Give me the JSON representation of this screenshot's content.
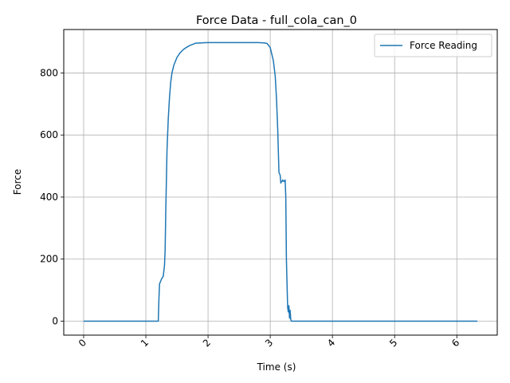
{
  "chart_data": {
    "type": "line",
    "title": "Force Data - full_cola_can_0",
    "xlabel": "Time (s)",
    "ylabel": "Force",
    "xlim": [
      -0.32,
      6.65
    ],
    "ylim": [
      -45,
      940
    ],
    "xticks": [
      0,
      1,
      2,
      3,
      4,
      5,
      6
    ],
    "yticks": [
      0,
      200,
      400,
      600,
      800
    ],
    "xtick_rotation": 45,
    "grid": true,
    "legend": {
      "position": "top-right"
    },
    "colors": {
      "line": "#1f77b4",
      "grid": "#b0b0b0"
    },
    "series": [
      {
        "name": "Force Reading",
        "x": [
          0,
          0.5,
          1.0,
          1.2,
          1.21,
          1.22,
          1.23,
          1.25,
          1.28,
          1.3,
          1.31,
          1.32,
          1.34,
          1.36,
          1.38,
          1.4,
          1.42,
          1.45,
          1.5,
          1.55,
          1.6,
          1.65,
          1.7,
          1.75,
          1.8,
          1.9,
          2.0,
          2.2,
          2.4,
          2.6,
          2.8,
          2.9,
          2.95,
          3.0,
          3.02,
          3.05,
          3.08,
          3.1,
          3.12,
          3.14,
          3.16,
          3.17,
          3.18,
          3.19,
          3.2,
          3.22,
          3.24,
          3.25,
          3.26,
          3.27,
          3.28,
          3.29,
          3.3,
          3.31,
          3.32,
          3.33,
          3.34,
          3.35,
          3.4,
          4.0,
          5.0,
          6.0,
          6.33
        ],
        "y": [
          0,
          0,
          0,
          0,
          70,
          120,
          125,
          135,
          145,
          180,
          230,
          350,
          550,
          650,
          720,
          770,
          800,
          825,
          850,
          865,
          875,
          882,
          888,
          892,
          896,
          897,
          898,
          898,
          898,
          898,
          898,
          897,
          895,
          882,
          865,
          840,
          790,
          720,
          620,
          480,
          470,
          445,
          450,
          450,
          455,
          450,
          455,
          400,
          200,
          120,
          45,
          30,
          50,
          10,
          35,
          5,
          0,
          0,
          0,
          0,
          0,
          0,
          0
        ]
      }
    ]
  }
}
